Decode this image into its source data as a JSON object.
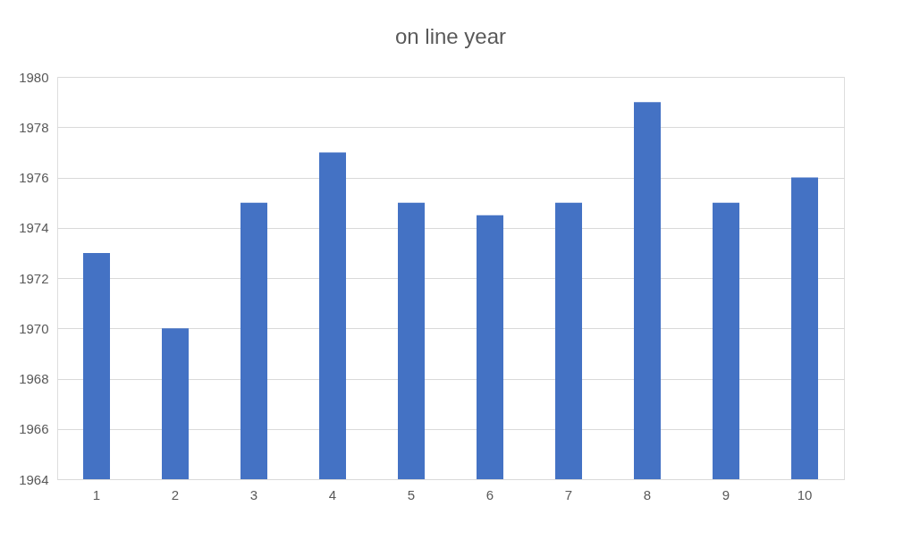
{
  "chart_data": {
    "type": "bar",
    "title": "on line year",
    "categories": [
      "1",
      "2",
      "3",
      "4",
      "5",
      "6",
      "7",
      "8",
      "9",
      "10"
    ],
    "values": [
      1973,
      1970,
      1975,
      1977,
      1975,
      1974.5,
      1975,
      1979,
      1975,
      1976
    ],
    "color": "#4472c4",
    "ylim": [
      1964,
      1980
    ],
    "yticks": [
      1964,
      1966,
      1968,
      1970,
      1972,
      1974,
      1976,
      1978,
      1980
    ],
    "grid": "y"
  }
}
